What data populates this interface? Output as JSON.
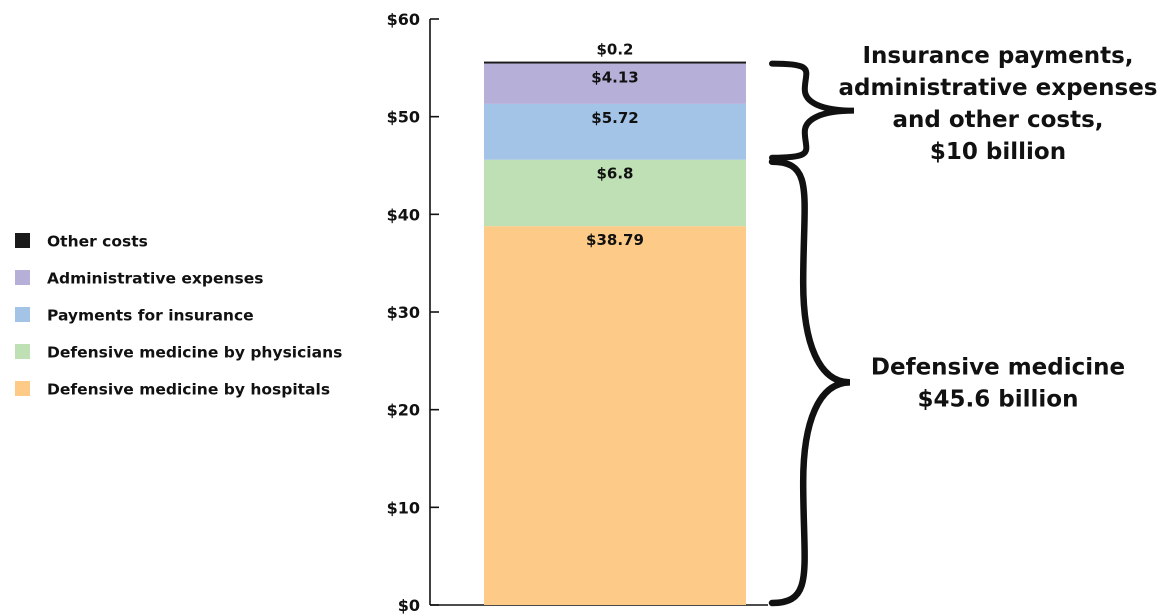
{
  "chart_data": {
    "type": "bar",
    "stacked": true,
    "ylim": [
      0,
      60
    ],
    "y_ticks": [
      {
        "value": 0,
        "label": "$0"
      },
      {
        "value": 10,
        "label": "$10"
      },
      {
        "value": 20,
        "label": "$20"
      },
      {
        "value": 30,
        "label": "$30"
      },
      {
        "value": 40,
        "label": "$40"
      },
      {
        "value": 50,
        "label": "$50"
      },
      {
        "value": 60,
        "label": "$60"
      }
    ],
    "grid": false,
    "legend_position": "left",
    "series": [
      {
        "name": "Defensive medicine by hospitals",
        "value": 38.79,
        "label": "$38.79",
        "color": "#FDCB87"
      },
      {
        "name": "Defensive medicine by physicians",
        "value": 6.8,
        "label": "$6.8",
        "color": "#BEE0B4"
      },
      {
        "name": "Payments for insurance",
        "value": 5.72,
        "label": "$5.72",
        "color": "#A3C4E6"
      },
      {
        "name": "Administrative expenses",
        "value": 4.13,
        "label": "$4.13",
        "color": "#B6AFD8"
      },
      {
        "name": "Other costs",
        "value": 0.2,
        "label": "$0.2",
        "color": "#1a1a1a"
      }
    ],
    "legend_order": [
      "Other costs",
      "Administrative expenses",
      "Payments for insurance",
      "Defensive medicine by physicians",
      "Defensive medicine by hospitals"
    ],
    "annotations": [
      {
        "group": "upper",
        "from": 45.59,
        "to": 55.64,
        "lines": [
          "Insurance payments,",
          "administrative expenses",
          "and other costs,",
          "$10 billion"
        ]
      },
      {
        "group": "lower",
        "from": 0,
        "to": 45.59,
        "lines": [
          "Defensive medicine",
          "$45.6 billion"
        ]
      }
    ]
  }
}
